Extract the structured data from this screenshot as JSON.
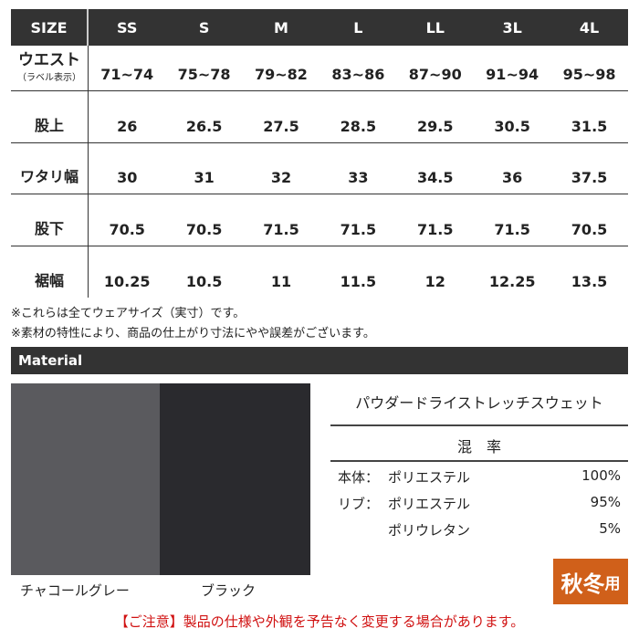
{
  "size_table": {
    "header": [
      "SIZE",
      "SS",
      "S",
      "M",
      "L",
      "LL",
      "3L",
      "4L"
    ],
    "rows": [
      {
        "label": "ウエスト",
        "sublabel": "（ラベル表示）",
        "values": [
          "71~74",
          "75~78",
          "79~82",
          "83~86",
          "87~90",
          "91~94",
          "95~98"
        ]
      },
      {
        "label": "股上",
        "values": [
          "26",
          "26.5",
          "27.5",
          "28.5",
          "29.5",
          "30.5",
          "31.5"
        ]
      },
      {
        "label": "ワタリ幅",
        "values": [
          "30",
          "31",
          "32",
          "33",
          "34.5",
          "36",
          "37.5"
        ]
      },
      {
        "label": "股下",
        "values": [
          "70.5",
          "70.5",
          "71.5",
          "71.5",
          "71.5",
          "71.5",
          "70.5"
        ]
      },
      {
        "label": "裾幅",
        "values": [
          "10.25",
          "10.5",
          "11",
          "11.5",
          "12",
          "12.25",
          "13.5"
        ]
      }
    ]
  },
  "notes": [
    "※これらは全てウェアサイズ（実寸）です。",
    "※素材の特性により、商品の仕上がり寸法にやや誤差がございます。"
  ],
  "material": {
    "title": "Material",
    "swatches": [
      {
        "label": "チャコールグレー",
        "color": "#5a5a5e"
      },
      {
        "label": "ブラック",
        "color": "#2a2a2e"
      }
    ],
    "fabric_name": "パウダードライストレッチスウェット",
    "blend_heading": "混　率",
    "composition": [
      {
        "part": "本体：",
        "material": "ポリエステル",
        "percent": "100%"
      },
      {
        "part": "リブ：",
        "material": "ポリエステル",
        "percent": "95%"
      },
      {
        "part": "",
        "material": "ポリウレタン",
        "percent": "5%"
      }
    ],
    "season_badge": {
      "main": "秋冬",
      "suffix": "用",
      "color": "#d0601a"
    }
  },
  "caution": "【ご注意】製品の仕様や外観を予告なく変更する場合があります。"
}
